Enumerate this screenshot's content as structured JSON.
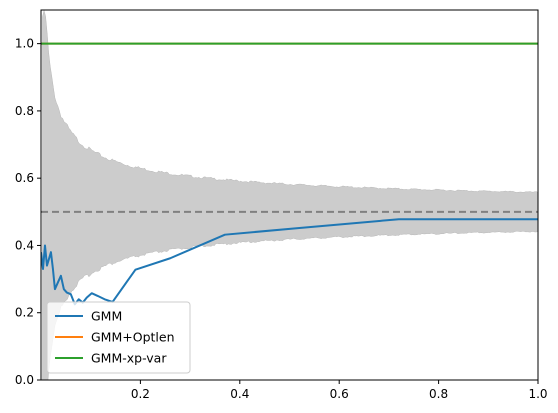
{
  "chart_data": {
    "type": "line",
    "title": "",
    "xlabel": "",
    "ylabel": "",
    "xlim": [
      0.0,
      1.0
    ],
    "ylim": [
      0.0,
      1.1
    ],
    "xticks": [
      0.2,
      0.4,
      0.6,
      0.8,
      1.0
    ],
    "xtick_labels": [
      "0.2",
      "0.4",
      "0.6",
      "0.8",
      "1.0"
    ],
    "yticks": [
      0.0,
      0.2,
      0.4,
      0.6,
      0.8,
      1.0
    ],
    "ytick_labels": [
      "0.0",
      "0.2",
      "0.4",
      "0.6",
      "0.8",
      "1.0"
    ],
    "grid": false,
    "legend_position": "lower-left",
    "series": [
      {
        "name": "GMM",
        "color": "#1f77b4",
        "x": [
          0.0,
          0.004,
          0.008,
          0.012,
          0.016,
          0.02,
          0.024,
          0.028,
          0.034,
          0.04,
          0.046,
          0.052,
          0.06,
          0.068,
          0.076,
          0.084,
          0.092,
          0.102,
          0.114,
          0.128,
          0.144,
          0.19,
          0.26,
          0.37,
          0.52,
          0.72,
          0.86,
          1.0
        ],
        "y": [
          0.38,
          0.33,
          0.4,
          0.34,
          0.36,
          0.38,
          0.33,
          0.27,
          0.29,
          0.31,
          0.27,
          0.26,
          0.255,
          0.225,
          0.24,
          0.23,
          0.245,
          0.258,
          0.25,
          0.24,
          0.232,
          0.328,
          0.362,
          0.432,
          0.452,
          0.478,
          0.478,
          0.478
        ]
      },
      {
        "name": "GMM+Optlen",
        "color": "#ff7f0e",
        "x": [
          0.0,
          1.0
        ],
        "y": [
          1.0,
          1.0
        ]
      },
      {
        "name": "GMM-xp-var",
        "color": "#2ca02c",
        "x": [
          0.0,
          1.0
        ],
        "y": [
          1.0,
          1.0
        ]
      }
    ],
    "reference_line": {
      "y": 0.5,
      "color": "#808080",
      "style": "dashed"
    },
    "band": {
      "color": "#cccccc",
      "center": 0.5
    }
  }
}
